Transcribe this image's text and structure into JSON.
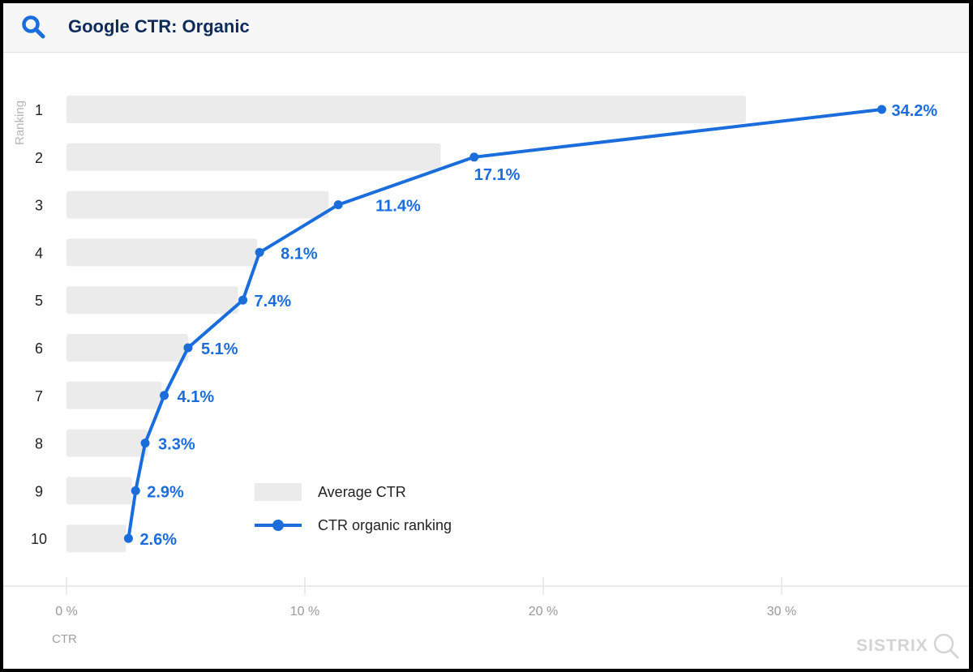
{
  "header": {
    "title": "Google CTR: Organic",
    "icon": "search-icon"
  },
  "watermark": "SISTRIX",
  "chart_data": {
    "type": "bar",
    "orientation": "horizontal",
    "categories": [
      "1",
      "2",
      "3",
      "4",
      "5",
      "6",
      "7",
      "8",
      "9",
      "10"
    ],
    "ylabel": "Ranking",
    "xlabel": "CTR",
    "xlim": [
      0,
      36
    ],
    "xticks": [
      0,
      10,
      20,
      30
    ],
    "xtick_labels": [
      "0 %",
      "10 %",
      "20 %",
      "30 %"
    ],
    "series": [
      {
        "name": "Average CTR",
        "type": "bar",
        "color": "#ebebeb",
        "values": [
          28.5,
          15.7,
          11.0,
          8.0,
          7.2,
          5.1,
          4.0,
          3.4,
          2.75,
          2.5
        ]
      },
      {
        "name": "CTR organic ranking",
        "type": "line",
        "color": "#1a6ddb",
        "values": [
          34.2,
          17.1,
          11.4,
          8.1,
          7.4,
          5.1,
          4.1,
          3.3,
          2.9,
          2.6
        ],
        "labels": [
          "34.2%",
          "17.1%",
          "11.4%",
          "8.1%",
          "7.4%",
          "5.1%",
          "4.1%",
          "3.3%",
          "2.9%",
          "2.6%"
        ]
      }
    ],
    "legend": "bottom-center-inside"
  }
}
